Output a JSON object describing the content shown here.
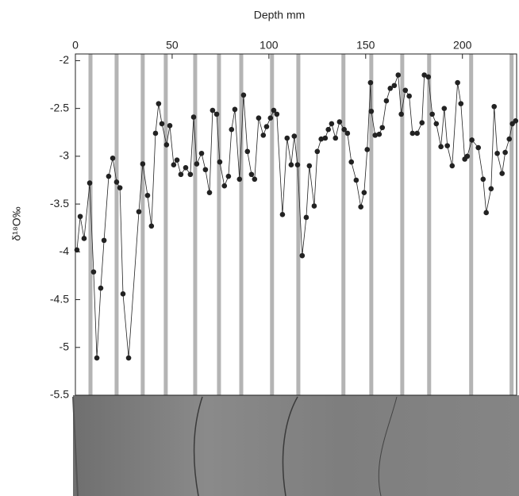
{
  "chart_data": {
    "type": "line",
    "title": "Depth mm",
    "y_label": "δ¹⁸O‰",
    "xlim": [
      0,
      228
    ],
    "xticks": [
      0,
      50,
      100,
      150,
      200
    ],
    "ylim": [
      -5.5,
      -1.93
    ],
    "yticks": [
      -2,
      -2.5,
      -3,
      -3.5,
      -4,
      -4.5,
      -5,
      -5.5
    ],
    "band_color": "#b4b4b4",
    "bands": [
      7.8,
      21.3,
      34.8,
      46.7,
      61.9,
      74.2,
      85.7,
      101.6,
      115.2,
      138.5,
      152.9,
      168.9,
      182.8,
      204.5,
      225.4
    ],
    "series": [
      {
        "color": "#222222",
        "x": [
          0.8,
          2.5,
          4.5,
          7.4,
          9.4,
          11.1,
          13.1,
          14.8,
          17.2,
          19.3,
          21.3,
          23.0,
          24.6,
          27.5,
          32.8,
          34.8,
          37.3,
          39.3,
          41.4,
          43.0,
          44.7,
          47.1,
          48.8,
          50.8,
          52.5,
          54.5,
          57.0,
          59.4,
          61.1,
          62.7,
          65.2,
          67.2,
          69.3,
          70.9,
          73.0,
          74.6,
          77.0,
          79.1,
          80.7,
          82.4,
          84.8,
          86.9,
          88.9,
          91.0,
          92.6,
          94.7,
          97.1,
          98.8,
          100.8,
          102.5,
          104.1,
          107.0,
          109.4,
          111.5,
          113.1,
          114.8,
          117.2,
          119.3,
          120.9,
          123.4,
          125.0,
          127.0,
          129.1,
          130.7,
          132.4,
          134.4,
          136.5,
          138.9,
          140.6,
          142.6,
          145.1,
          147.5,
          149.2,
          150.8,
          152.5,
          152.9,
          154.9,
          157.0,
          158.6,
          160.7,
          162.7,
          164.8,
          166.8,
          168.4,
          170.5,
          172.5,
          174.2,
          176.6,
          179.1,
          180.3,
          182.4,
          184.4,
          186.5,
          188.9,
          190.6,
          192.2,
          194.7,
          197.5,
          199.2,
          201.2,
          202.5,
          204.9,
          208.2,
          210.7,
          212.3,
          214.8,
          216.4,
          218.0,
          220.5,
          222.1,
          224.2,
          225.8,
          227.5
        ],
        "values": [
          -3.98,
          -3.63,
          -3.86,
          -3.28,
          -4.21,
          -5.11,
          -4.38,
          -3.88,
          -3.21,
          -3.02,
          -3.27,
          -3.33,
          -4.44,
          -5.11,
          -3.58,
          -3.08,
          -3.41,
          -3.73,
          -2.76,
          -2.45,
          -2.66,
          -2.88,
          -2.68,
          -3.09,
          -3.04,
          -3.19,
          -3.12,
          -3.19,
          -2.59,
          -3.08,
          -2.97,
          -3.14,
          -3.38,
          -2.52,
          -2.56,
          -3.06,
          -3.31,
          -3.21,
          -2.72,
          -2.51,
          -3.24,
          -2.36,
          -2.95,
          -3.19,
          -3.24,
          -2.6,
          -2.78,
          -2.69,
          -2.6,
          -2.52,
          -2.56,
          -3.61,
          -2.81,
          -3.09,
          -2.79,
          -3.09,
          -4.04,
          -3.64,
          -3.1,
          -3.52,
          -2.95,
          -2.82,
          -2.81,
          -2.72,
          -2.66,
          -2.81,
          -2.64,
          -2.72,
          -2.76,
          -3.06,
          -3.25,
          -3.53,
          -3.38,
          -2.93,
          -2.23,
          -2.53,
          -2.78,
          -2.77,
          -2.7,
          -2.42,
          -2.29,
          -2.26,
          -2.15,
          -2.56,
          -2.31,
          -2.37,
          -2.76,
          -2.76,
          -2.65,
          -2.15,
          -2.17,
          -2.56,
          -2.66,
          -2.9,
          -2.5,
          -2.89,
          -3.1,
          -2.23,
          -2.45,
          -3.03,
          -3.0,
          -2.83,
          -2.91,
          -3.24,
          -3.59,
          -3.34,
          -2.48,
          -2.97,
          -3.18,
          -2.96,
          -2.82,
          -2.66,
          -2.63
        ]
      }
    ]
  }
}
